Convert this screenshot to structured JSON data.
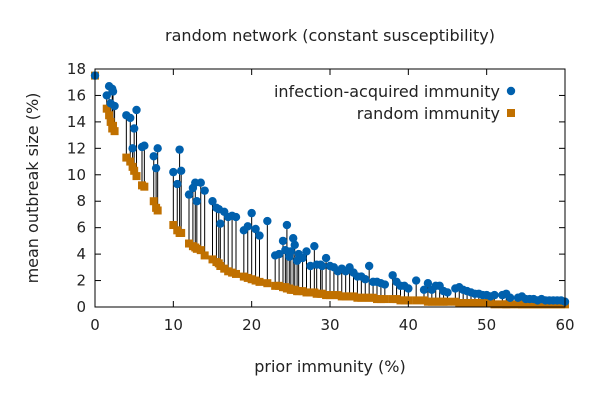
{
  "chart_data": {
    "type": "scatter",
    "title": "random network (constant susceptibility)",
    "xlabel": "prior immunity (%)",
    "ylabel": "mean outbreak size (%)",
    "xlim": [
      0,
      60
    ],
    "ylim": [
      0,
      18
    ],
    "xticks": [
      "0",
      "10",
      "20",
      "30",
      "40",
      "50",
      "60"
    ],
    "yticks": [
      "0",
      "2",
      "4",
      "6",
      "8",
      "10",
      "12",
      "14",
      "16",
      "18"
    ],
    "grid": false,
    "legend": "top-right",
    "series": [
      {
        "name": "infection-acquired immunity",
        "marker": "circle",
        "color": "#0060ad",
        "x": [
          0.0,
          1.5,
          1.8,
          2.0,
          2.2,
          2.3,
          2.5,
          4.0,
          4.5,
          4.8,
          5.0,
          5.3,
          6.0,
          6.3,
          7.5,
          7.8,
          8.0,
          10.0,
          10.5,
          10.8,
          11.0,
          12.0,
          12.5,
          12.8,
          13.0,
          13.5,
          14.0,
          15.0,
          15.5,
          15.8,
          16.0,
          16.5,
          17.0,
          17.5,
          18.0,
          19.0,
          19.5,
          20.0,
          20.5,
          21.0,
          22.0,
          23.0,
          23.5,
          24.0,
          24.3,
          24.5,
          24.8,
          25.0,
          25.3,
          25.5,
          25.8,
          26.0,
          26.5,
          27.0,
          27.5,
          28.0,
          28.3,
          28.8,
          29.0,
          29.5,
          30.0,
          30.5,
          31.0,
          31.5,
          32.0,
          32.5,
          33.0,
          33.5,
          34.0,
          34.5,
          35.0,
          35.5,
          36.0,
          36.5,
          37.0,
          38.0,
          38.5,
          39.0,
          39.5,
          40.0,
          41.0,
          42.0,
          42.5,
          43.0,
          43.5,
          44.0,
          44.5,
          45.0,
          46.0,
          46.5,
          47.0,
          47.5,
          48.0,
          48.5,
          49.0,
          49.5,
          50.0,
          50.5,
          51.0,
          52.0,
          52.5,
          53.0,
          54.0,
          54.5,
          55.0,
          55.5,
          56.0,
          56.5,
          57.0,
          57.5,
          58.0,
          58.5,
          59.0,
          59.5,
          60.0
        ],
        "y": [
          17.5,
          16.0,
          16.7,
          15.4,
          16.5,
          16.3,
          15.2,
          14.5,
          14.3,
          12.0,
          13.5,
          14.9,
          12.1,
          12.2,
          11.4,
          10.5,
          12.0,
          10.2,
          9.3,
          11.9,
          10.3,
          8.5,
          9.0,
          9.4,
          8.0,
          9.4,
          8.8,
          8.0,
          7.5,
          7.4,
          6.3,
          7.2,
          6.8,
          6.9,
          6.8,
          5.8,
          6.1,
          7.1,
          5.9,
          5.4,
          6.5,
          3.9,
          4.0,
          5.0,
          4.3,
          6.2,
          3.8,
          4.2,
          5.2,
          4.7,
          3.5,
          4.0,
          3.7,
          4.2,
          3.1,
          4.6,
          3.2,
          3.2,
          3.1,
          3.7,
          3.1,
          3.0,
          2.7,
          2.9,
          2.7,
          3.0,
          2.6,
          2.3,
          2.3,
          2.1,
          3.1,
          1.9,
          1.9,
          1.8,
          1.7,
          2.4,
          1.9,
          1.6,
          1.6,
          1.4,
          2.0,
          1.3,
          1.8,
          1.3,
          1.6,
          1.6,
          1.2,
          1.1,
          1.4,
          1.5,
          1.3,
          1.2,
          1.1,
          1.0,
          1.0,
          0.9,
          0.9,
          0.8,
          0.9,
          0.9,
          1.0,
          0.7,
          0.7,
          0.8,
          0.6,
          0.6,
          0.6,
          0.5,
          0.6,
          0.5,
          0.5,
          0.5,
          0.5,
          0.5,
          0.4
        ]
      },
      {
        "name": "random immunity",
        "marker": "square",
        "color": "#c07000",
        "x": [
          0.0,
          1.5,
          1.8,
          2.0,
          2.2,
          2.3,
          2.5,
          4.0,
          4.5,
          4.8,
          5.0,
          5.3,
          6.0,
          6.3,
          7.5,
          7.8,
          8.0,
          10.0,
          10.5,
          10.8,
          11.0,
          12.0,
          12.5,
          12.8,
          13.0,
          13.5,
          14.0,
          15.0,
          15.5,
          15.8,
          16.0,
          16.5,
          17.0,
          17.5,
          18.0,
          19.0,
          19.5,
          20.0,
          20.5,
          21.0,
          22.0,
          23.0,
          23.5,
          24.0,
          24.3,
          24.5,
          24.8,
          25.0,
          25.3,
          25.5,
          25.8,
          26.0,
          26.5,
          27.0,
          27.5,
          28.0,
          28.3,
          28.8,
          29.0,
          29.5,
          30.0,
          30.5,
          31.0,
          31.5,
          32.0,
          32.5,
          33.0,
          33.5,
          34.0,
          34.5,
          35.0,
          35.5,
          36.0,
          36.5,
          37.0,
          38.0,
          38.5,
          39.0,
          39.5,
          40.0,
          41.0,
          42.0,
          42.5,
          43.0,
          43.5,
          44.0,
          44.5,
          45.0,
          46.0,
          46.5,
          47.0,
          47.5,
          48.0,
          48.5,
          49.0,
          49.5,
          50.0,
          50.5,
          51.0,
          52.0,
          52.5,
          53.0,
          54.0,
          54.5,
          55.0,
          55.5,
          56.0,
          56.5,
          57.0,
          57.5,
          58.0,
          58.5,
          59.0,
          59.5,
          60.0
        ],
        "y": [
          17.5,
          15.0,
          14.5,
          14.0,
          13.5,
          13.7,
          13.3,
          11.3,
          11.0,
          10.6,
          10.3,
          9.9,
          9.2,
          9.1,
          8.0,
          7.5,
          7.3,
          6.2,
          5.8,
          5.6,
          5.6,
          4.8,
          4.6,
          4.5,
          4.4,
          4.3,
          3.9,
          3.6,
          3.4,
          3.3,
          3.1,
          2.9,
          2.7,
          2.6,
          2.5,
          2.3,
          2.2,
          2.1,
          2.0,
          1.9,
          1.8,
          1.6,
          1.6,
          1.5,
          1.5,
          1.4,
          1.4,
          1.3,
          1.3,
          1.3,
          1.2,
          1.2,
          1.2,
          1.1,
          1.1,
          1.1,
          1.0,
          1.0,
          1.0,
          0.9,
          0.9,
          0.9,
          0.9,
          0.8,
          0.8,
          0.8,
          0.8,
          0.7,
          0.7,
          0.7,
          0.7,
          0.7,
          0.6,
          0.6,
          0.6,
          0.6,
          0.6,
          0.5,
          0.5,
          0.5,
          0.5,
          0.5,
          0.4,
          0.4,
          0.4,
          0.4,
          0.4,
          0.4,
          0.4,
          0.3,
          0.3,
          0.3,
          0.3,
          0.3,
          0.3,
          0.3,
          0.3,
          0.3,
          0.2,
          0.2,
          0.2,
          0.2,
          0.2,
          0.2,
          0.2,
          0.2,
          0.2,
          0.2,
          0.2,
          0.2,
          0.2,
          0.2,
          0.2,
          0.2,
          0.2
        ]
      }
    ]
  }
}
